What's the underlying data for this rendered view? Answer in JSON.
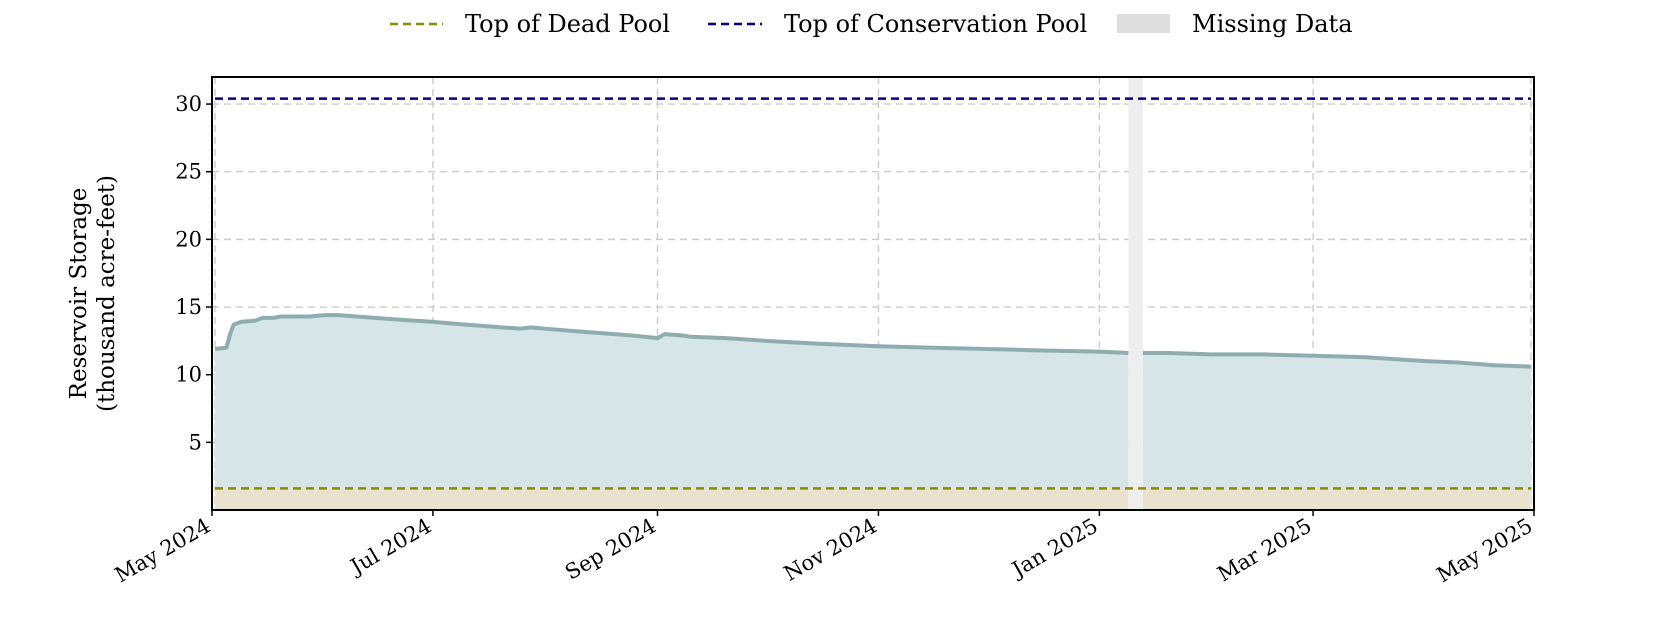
{
  "chart_data": {
    "type": "area",
    "title": "",
    "xlabel": "",
    "ylabel_lines": [
      "Reservoir Storage",
      "(thousand acre-feet)"
    ],
    "x_axis_type": "date",
    "xlim": [
      "2024-05-01",
      "2025-05-01"
    ],
    "ylim": [
      0,
      32
    ],
    "x_ticks": [
      {
        "date": "2024-05-01",
        "label": "May 2024"
      },
      {
        "date": "2024-07-01",
        "label": "Jul 2024"
      },
      {
        "date": "2024-09-01",
        "label": "Sep 2024"
      },
      {
        "date": "2024-11-01",
        "label": "Nov 2024"
      },
      {
        "date": "2025-01-01",
        "label": "Jan 2025"
      },
      {
        "date": "2025-03-01",
        "label": "Mar 2025"
      },
      {
        "date": "2025-05-01",
        "label": "May 2025"
      }
    ],
    "y_ticks": [
      5,
      10,
      15,
      20,
      25,
      30
    ],
    "grid": true,
    "legend_position": "top-center",
    "legend": [
      {
        "key": "dead_pool",
        "label": "Top of Dead Pool",
        "style": "dashed-line",
        "color": "#8c8a00"
      },
      {
        "key": "conservation_pool",
        "label": "Top of Conservation Pool",
        "style": "dashed-line",
        "color": "#00008b"
      },
      {
        "key": "missing",
        "label": "Missing Data",
        "style": "patch",
        "color": "#dddddd"
      }
    ],
    "reference_lines": {
      "dead_pool": 1.6,
      "conservation_pool": 30.4
    },
    "missing_ranges": [
      [
        "2025-01-09",
        "2025-01-13"
      ]
    ],
    "colors": {
      "storage_line": "#8fadb1",
      "storage_fill": "#d6e5e6",
      "dead_pool_fill": "#e9e2cf",
      "missing_band": "#eeeeee",
      "grid": "#cccccc"
    },
    "series": [
      {
        "key": "storage",
        "x": [
          "2024-05-01",
          "2024-05-05",
          "2024-05-06",
          "2024-05-07",
          "2024-05-09",
          "2024-05-13",
          "2024-05-15",
          "2024-05-18",
          "2024-05-20",
          "2024-05-24",
          "2024-05-28",
          "2024-06-01",
          "2024-06-05",
          "2024-06-10",
          "2024-06-15",
          "2024-06-20",
          "2024-07-01",
          "2024-07-10",
          "2024-07-20",
          "2024-07-25",
          "2024-07-28",
          "2024-08-01",
          "2024-08-10",
          "2024-08-20",
          "2024-08-25",
          "2024-09-01",
          "2024-09-03",
          "2024-09-08",
          "2024-09-10",
          "2024-09-20",
          "2024-10-01",
          "2024-10-15",
          "2024-11-01",
          "2024-11-15",
          "2024-12-01",
          "2024-12-15",
          "2025-01-01",
          "2025-01-09"
        ],
        "y": [
          11.9,
          12.0,
          13.0,
          13.7,
          13.9,
          14.0,
          14.2,
          14.2,
          14.3,
          14.3,
          14.3,
          14.4,
          14.4,
          14.3,
          14.2,
          14.1,
          13.9,
          13.7,
          13.5,
          13.4,
          13.5,
          13.4,
          13.2,
          13.0,
          12.9,
          12.7,
          13.0,
          12.9,
          12.8,
          12.7,
          12.5,
          12.3,
          12.1,
          12.0,
          11.9,
          11.8,
          11.7,
          11.6
        ]
      },
      {
        "key": "storage_after_gap",
        "x": [
          "2025-01-13",
          "2025-01-20",
          "2025-02-01",
          "2025-02-15",
          "2025-03-01",
          "2025-03-15",
          "2025-04-01",
          "2025-04-10",
          "2025-04-20",
          "2025-05-01"
        ],
        "y": [
          11.6,
          11.6,
          11.5,
          11.5,
          11.4,
          11.3,
          11.0,
          10.9,
          10.7,
          10.6
        ]
      }
    ]
  }
}
